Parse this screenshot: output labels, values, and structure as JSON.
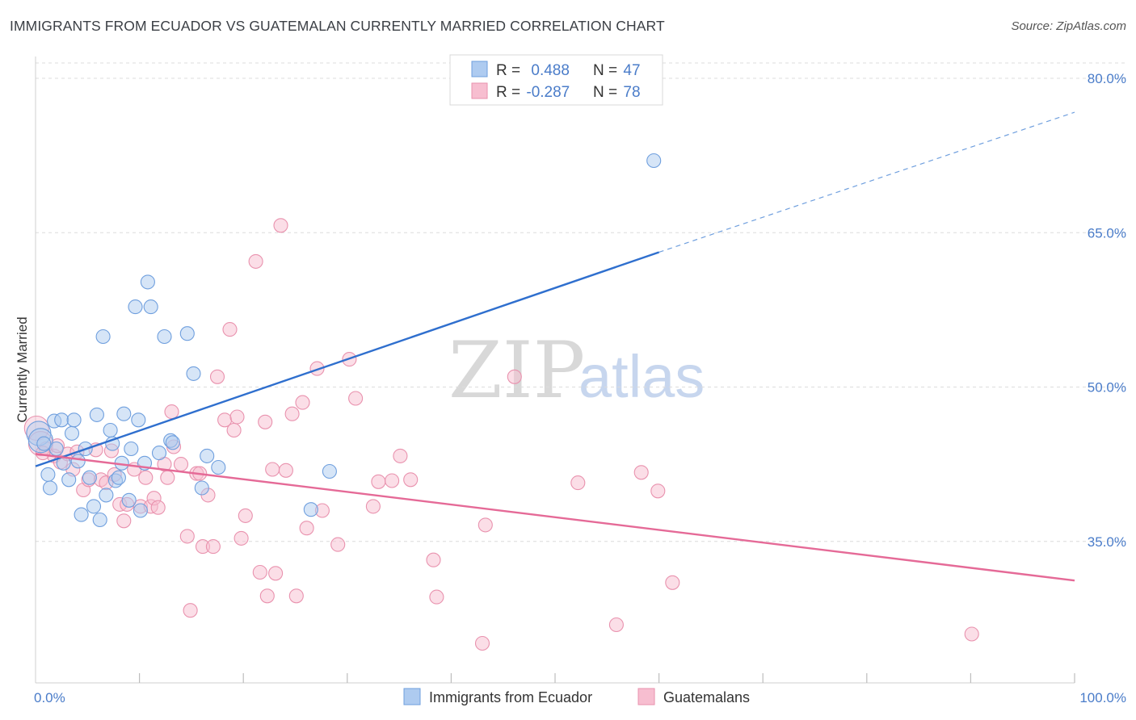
{
  "header": {
    "title": "IMMIGRANTS FROM ECUADOR VS GUATEMALAN CURRENTLY MARRIED CORRELATION CHART",
    "source": "Source: ZipAtlas.com"
  },
  "watermark": {
    "zip": "ZIP",
    "atlas": "atlas"
  },
  "colors": {
    "blue_fill": "#aecbf0",
    "blue_stroke": "#6f9fde",
    "blue_line": "#2f6fce",
    "pink_fill": "#f7bed0",
    "pink_stroke": "#e992ae",
    "pink_line": "#e56a97",
    "value_text": "#4a7cc9",
    "grid": "#dcdcdc"
  },
  "legend": {
    "rows": [
      {
        "r_label": "R = ",
        "r_value": "0.488",
        "n_label": "N = ",
        "n_value": "47"
      },
      {
        "r_label": "R = ",
        "r_value": "-0.287",
        "n_label": "N = ",
        "n_value": "78"
      }
    ]
  },
  "chart_data": {
    "type": "scatter",
    "title": "IMMIGRANTS FROM ECUADOR VS GUATEMALAN CURRENTLY MARRIED CORRELATION CHART",
    "ylabel": "Currently Married",
    "xlabel": "",
    "x_tick_labels": [
      "0.0%",
      "100.0%"
    ],
    "y_tick_labels": [
      "80.0%",
      "65.0%",
      "50.0%",
      "35.0%"
    ],
    "y_ticks": [
      80,
      65,
      50,
      35
    ],
    "xlim": [
      0,
      100
    ],
    "ylim": [
      22,
      83
    ],
    "grid": true,
    "legend_position": "top-center",
    "series": [
      {
        "name": "Immigrants from Ecuador",
        "color": "blue",
        "R": 0.488,
        "N": 47,
        "trend": {
          "x_start": 0,
          "y_start": 42.3,
          "x_solid_end": 60,
          "y_solid_end": 63.1,
          "x_dash_end": 100,
          "y_dash_end": 76.7
        },
        "points": [
          [
            0.3,
            45.5
          ],
          [
            0.5,
            44.8
          ],
          [
            0.8,
            44.5
          ],
          [
            1.2,
            41.5
          ],
          [
            1.4,
            40.2
          ],
          [
            1.8,
            46.7
          ],
          [
            2.0,
            44.0
          ],
          [
            2.5,
            46.8
          ],
          [
            2.7,
            42.6
          ],
          [
            3.2,
            41.0
          ],
          [
            3.5,
            45.5
          ],
          [
            3.7,
            46.8
          ],
          [
            4.1,
            42.8
          ],
          [
            4.4,
            37.6
          ],
          [
            4.8,
            44.0
          ],
          [
            5.2,
            41.2
          ],
          [
            5.6,
            38.4
          ],
          [
            5.9,
            47.3
          ],
          [
            6.2,
            37.1
          ],
          [
            6.5,
            54.9
          ],
          [
            6.8,
            39.5
          ],
          [
            7.2,
            45.8
          ],
          [
            7.4,
            44.5
          ],
          [
            7.7,
            40.9
          ],
          [
            8.0,
            41.2
          ],
          [
            8.3,
            42.6
          ],
          [
            8.5,
            47.4
          ],
          [
            9.0,
            39.0
          ],
          [
            9.2,
            44.0
          ],
          [
            9.6,
            57.8
          ],
          [
            9.9,
            46.8
          ],
          [
            10.1,
            38.0
          ],
          [
            10.5,
            42.6
          ],
          [
            10.8,
            60.2
          ],
          [
            11.1,
            57.8
          ],
          [
            11.9,
            43.6
          ],
          [
            12.4,
            54.9
          ],
          [
            13.0,
            44.8
          ],
          [
            13.2,
            44.6
          ],
          [
            14.6,
            55.2
          ],
          [
            15.2,
            51.3
          ],
          [
            16.0,
            40.2
          ],
          [
            16.5,
            43.3
          ],
          [
            17.6,
            42.2
          ],
          [
            26.5,
            38.1
          ],
          [
            28.3,
            41.8
          ],
          [
            59.5,
            72.0
          ]
        ]
      },
      {
        "name": "Guatemalans",
        "color": "pink",
        "R": -0.287,
        "N": 78,
        "trend": {
          "x_start": 0,
          "y_start": 43.5,
          "x_end": 100,
          "y_end": 31.2
        },
        "points": [
          [
            0.1,
            46.0
          ],
          [
            0.5,
            44.5
          ],
          [
            1.0,
            44.0
          ],
          [
            1.8,
            43.3
          ],
          [
            2.4,
            42.7
          ],
          [
            3.1,
            43.5
          ],
          [
            3.6,
            42.0
          ],
          [
            4.0,
            43.7
          ],
          [
            4.6,
            40.0
          ],
          [
            5.1,
            41.0
          ],
          [
            5.8,
            43.9
          ],
          [
            6.3,
            41.0
          ],
          [
            6.8,
            40.7
          ],
          [
            7.3,
            43.8
          ],
          [
            7.6,
            41.5
          ],
          [
            8.1,
            38.6
          ],
          [
            8.5,
            37.0
          ],
          [
            8.8,
            38.6
          ],
          [
            9.5,
            42.0
          ],
          [
            10.1,
            38.4
          ],
          [
            10.6,
            41.2
          ],
          [
            11.1,
            38.4
          ],
          [
            11.4,
            39.2
          ],
          [
            11.8,
            38.3
          ],
          [
            12.4,
            42.5
          ],
          [
            12.7,
            41.2
          ],
          [
            13.1,
            47.6
          ],
          [
            13.3,
            44.2
          ],
          [
            14.0,
            42.5
          ],
          [
            14.6,
            35.5
          ],
          [
            14.9,
            28.3
          ],
          [
            15.5,
            41.6
          ],
          [
            15.8,
            41.6
          ],
          [
            16.1,
            34.5
          ],
          [
            16.6,
            39.5
          ],
          [
            17.1,
            34.5
          ],
          [
            17.5,
            51.0
          ],
          [
            18.2,
            46.8
          ],
          [
            18.7,
            55.6
          ],
          [
            19.1,
            45.8
          ],
          [
            19.4,
            47.1
          ],
          [
            19.8,
            35.3
          ],
          [
            20.2,
            37.5
          ],
          [
            21.2,
            62.2
          ],
          [
            21.6,
            32.0
          ],
          [
            22.1,
            46.6
          ],
          [
            22.3,
            29.7
          ],
          [
            22.8,
            42.0
          ],
          [
            23.1,
            31.9
          ],
          [
            23.6,
            65.7
          ],
          [
            24.1,
            41.9
          ],
          [
            24.7,
            47.4
          ],
          [
            25.1,
            29.7
          ],
          [
            25.7,
            48.5
          ],
          [
            26.1,
            36.3
          ],
          [
            27.1,
            51.8
          ],
          [
            27.6,
            38.0
          ],
          [
            29.1,
            34.7
          ],
          [
            30.2,
            52.7
          ],
          [
            30.8,
            48.9
          ],
          [
            32.5,
            38.4
          ],
          [
            33.0,
            40.8
          ],
          [
            34.3,
            40.9
          ],
          [
            35.1,
            43.3
          ],
          [
            36.1,
            41.0
          ],
          [
            38.3,
            33.2
          ],
          [
            38.6,
            29.6
          ],
          [
            43.0,
            25.1
          ],
          [
            43.3,
            36.6
          ],
          [
            46.1,
            51.0
          ],
          [
            52.2,
            40.7
          ],
          [
            55.9,
            26.9
          ],
          [
            58.3,
            41.7
          ],
          [
            59.9,
            39.9
          ],
          [
            61.3,
            31.0
          ],
          [
            90.1,
            26.0
          ],
          [
            0.7,
            43.6
          ],
          [
            2.1,
            44.3
          ]
        ]
      }
    ]
  }
}
